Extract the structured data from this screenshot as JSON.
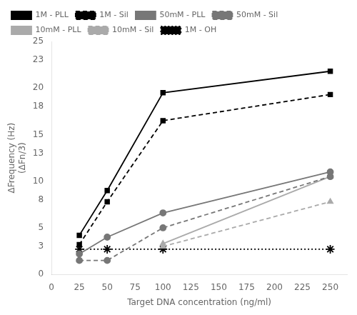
{
  "chart_data": {
    "type": "line",
    "xlabel": "Target DNA concentration (ng/ml)",
    "ylabel": "ΔFrequency (Hz)\n(ΔFn/3)",
    "x": [
      25,
      50,
      100,
      250
    ],
    "series": [
      {
        "name": "1M - PLL",
        "color": "#000000",
        "marker": "square",
        "line_style": "solid",
        "values": [
          4.2,
          9.0,
          19.5,
          21.8
        ]
      },
      {
        "name": "1M - Sil",
        "color": "#000000",
        "marker": "square",
        "line_style": "dashed",
        "values": [
          3.2,
          7.8,
          16.5,
          19.3
        ]
      },
      {
        "name": "50mM - PLL",
        "color": "#777777",
        "marker": "circle",
        "line_style": "solid",
        "values": [
          2.2,
          4.0,
          6.6,
          11.0
        ]
      },
      {
        "name": "50mM - Sil",
        "color": "#777777",
        "marker": "circle",
        "line_style": "dashed",
        "values": [
          1.5,
          1.5,
          5.0,
          10.5
        ]
      },
      {
        "name": "10mM - PLL",
        "color": "#aaaaaa",
        "marker": "triangle",
        "line_style": "solid",
        "values": [
          null,
          null,
          3.3,
          10.5
        ]
      },
      {
        "name": "10mM - Sil",
        "color": "#aaaaaa",
        "marker": "triangle",
        "line_style": "dashed",
        "values": [
          null,
          null,
          3.0,
          7.8
        ]
      },
      {
        "name": "1M - OH",
        "color": "#000000",
        "marker": "star",
        "line_style": "dotted",
        "values": [
          2.7,
          2.7,
          2.7,
          2.7
        ]
      }
    ],
    "xlim": [
      0,
      265
    ],
    "ylim": [
      0,
      25
    ],
    "xticks": [
      0,
      25,
      50,
      75,
      100,
      125,
      150,
      175,
      200,
      225,
      250
    ],
    "yticks": [
      0,
      3,
      5,
      8,
      10,
      13,
      15,
      18,
      20,
      23,
      25
    ],
    "grid": false,
    "legend": "upper left"
  }
}
